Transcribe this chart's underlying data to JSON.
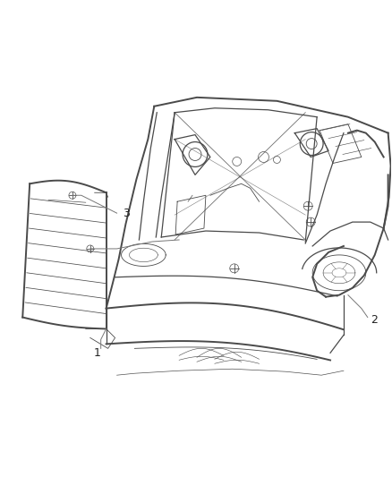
{
  "background_color": "#ffffff",
  "fig_width": 4.38,
  "fig_height": 5.33,
  "dpi": 100,
  "line_color": "#4a4a4a",
  "line_color_light": "#888888",
  "label_color": "#222222",
  "label_fontsize": 9
}
